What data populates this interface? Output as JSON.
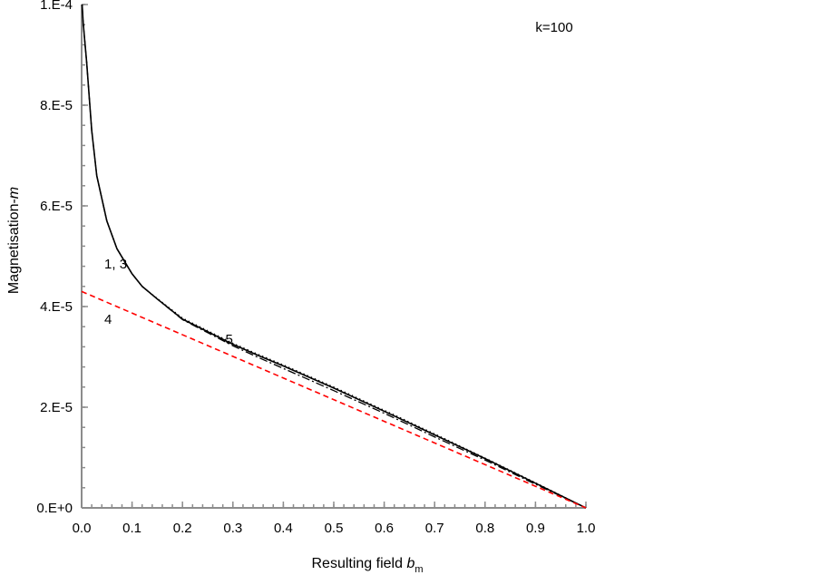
{
  "chart_data": {
    "type": "line",
    "title": "",
    "xlabel": "Resulting field",
    "xlabel_symbol": "b",
    "xlabel_subscript": "m",
    "ylabel": "Magnetisation-",
    "ylabel_symbol": "m",
    "xlim": [
      0.0,
      1.0
    ],
    "ylim": [
      0.0,
      0.0001
    ],
    "x_ticks": [
      0.0,
      0.1,
      0.2,
      0.3,
      0.4,
      0.5,
      0.6,
      0.7,
      0.8,
      0.9,
      1.0
    ],
    "x_tick_labels": [
      "0.0",
      "0.1",
      "0.2",
      "0.3",
      "0.4",
      "0.5",
      "0.6",
      "0.7",
      "0.8",
      "0.9",
      "1.0"
    ],
    "y_ticks": [
      0.0,
      2e-05,
      4e-05,
      6e-05,
      8e-05,
      0.0001
    ],
    "y_tick_labels": [
      "0.E+0",
      "2.E-5",
      "4.E-5",
      "6.E-5",
      "8.E-5",
      "1.E-4"
    ],
    "grid": false,
    "annotations": [
      {
        "text": "k=100",
        "x": 0.9,
        "y": 9.55e-05
      },
      {
        "text": "1, 3",
        "x": 0.045,
        "y": 4.85e-05
      },
      {
        "text": "4",
        "x": 0.045,
        "y": 3.75e-05
      },
      {
        "text": "5",
        "x": 0.285,
        "y": 3.35e-05
      }
    ],
    "series": [
      {
        "style": "solid",
        "color": "#000000",
        "x": [
          0.001,
          0.003,
          0.006,
          0.01,
          0.02,
          0.03,
          0.05,
          0.07,
          0.1,
          0.12,
          0.15,
          0.2,
          0.25,
          0.3,
          0.35,
          0.4,
          0.5,
          0.6,
          0.7,
          0.8,
          0.9,
          1.0
        ],
        "y": [
          0.000102,
          9.65e-05,
          9.3e-05,
          8.85e-05,
          7.5e-05,
          6.6e-05,
          5.7e-05,
          5.15e-05,
          4.65e-05,
          4.4e-05,
          4.15e-05,
          3.75e-05,
          3.5e-05,
          3.25e-05,
          3.03e-05,
          2.82e-05,
          2.38e-05,
          1.92e-05,
          1.45e-05,
          9.8e-06,
          4.9e-06,
          0.0
        ]
      },
      {
        "style": "dashdot",
        "color": "#000000",
        "x": [
          0.001,
          0.003,
          0.006,
          0.01,
          0.02,
          0.03,
          0.05,
          0.07,
          0.1,
          0.12,
          0.15,
          0.2,
          0.25,
          0.3,
          0.35,
          0.4,
          0.5,
          0.6,
          0.7,
          0.8,
          0.9,
          1.0
        ],
        "y": [
          0.000102,
          9.65e-05,
          9.3e-05,
          8.85e-05,
          7.5e-05,
          6.6e-05,
          5.7e-05,
          5.15e-05,
          4.65e-05,
          4.4e-05,
          4.15e-05,
          3.74e-05,
          3.48e-05,
          3.22e-05,
          2.99e-05,
          2.77e-05,
          2.33e-05,
          1.88e-05,
          1.41e-05,
          9.5e-06,
          4.7e-06,
          0.0
        ]
      },
      {
        "style": "dotted",
        "color": "#000000",
        "x": [
          0.001,
          0.003,
          0.006,
          0.01,
          0.02,
          0.03,
          0.05,
          0.07,
          0.1,
          0.12,
          0.15,
          0.2,
          0.25,
          0.3,
          0.35,
          0.4,
          0.5,
          0.6,
          0.7,
          0.8,
          0.9,
          1.0
        ],
        "y": [
          0.000102,
          9.65e-05,
          9.3e-05,
          8.85e-05,
          7.5e-05,
          6.6e-05,
          5.7e-05,
          5.15e-05,
          4.65e-05,
          4.4e-05,
          4.16e-05,
          3.77e-05,
          3.52e-05,
          3.27e-05,
          3.05e-05,
          2.84e-05,
          2.4e-05,
          1.94e-05,
          1.47e-05,
          9.9e-06,
          5e-06,
          0.0
        ]
      },
      {
        "style": "dashed",
        "color": "#ff0000",
        "x": [
          0.0,
          1.0
        ],
        "y": [
          4.3e-05,
          0.0
        ]
      }
    ]
  }
}
